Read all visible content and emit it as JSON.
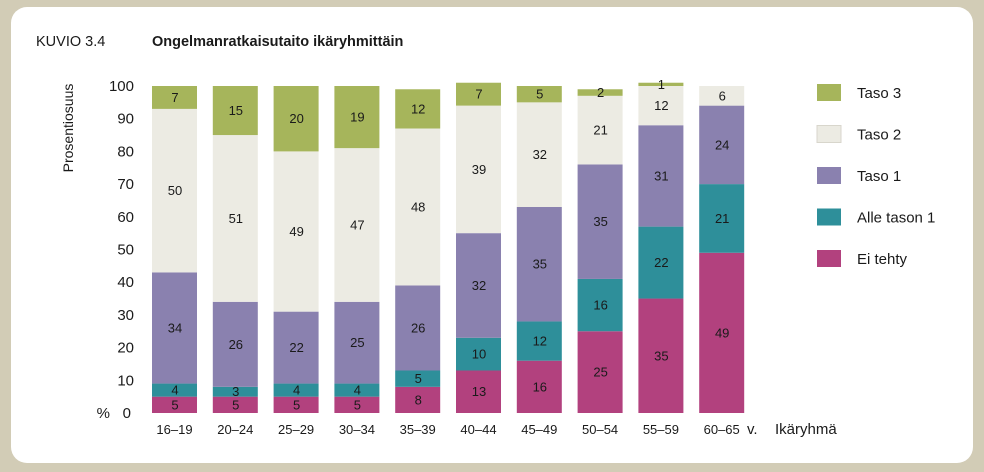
{
  "figure": {
    "number": "KUVIO 3.4",
    "title": "Ongelmanratkaisutaito ikäryhmittäin"
  },
  "chart_data": {
    "type": "bar",
    "stacked": true,
    "ylabel": "Prosentiosuus",
    "y_unit_label": "%",
    "xlabel": "Ikäryhmä",
    "x_suffix": "v.",
    "ylim": [
      0,
      100
    ],
    "yticks": [
      0,
      10,
      20,
      30,
      40,
      50,
      60,
      70,
      80,
      90,
      100
    ],
    "grid": false,
    "legend_position": "right",
    "categories": [
      "16–19",
      "20–24",
      "25–29",
      "30–34",
      "35–39",
      "40–44",
      "45–49",
      "50–54",
      "55–59",
      "60–65"
    ],
    "series": [
      {
        "name": "Ei tehty",
        "color": "#b2417e",
        "values": [
          5,
          5,
          5,
          5,
          8,
          13,
          16,
          25,
          35,
          49
        ]
      },
      {
        "name": "Alle tason 1",
        "color": "#2e8f9a",
        "values": [
          4,
          3,
          4,
          4,
          5,
          10,
          12,
          16,
          22,
          21
        ]
      },
      {
        "name": "Taso 1",
        "color": "#8a81af",
        "values": [
          34,
          26,
          22,
          25,
          26,
          32,
          35,
          35,
          31,
          24
        ]
      },
      {
        "name": "Taso 2",
        "color": "#ecebe3",
        "values": [
          50,
          51,
          49,
          47,
          48,
          39,
          32,
          21,
          12,
          6
        ]
      },
      {
        "name": "Taso 3",
        "color": "#a6b55b",
        "values": [
          7,
          15,
          20,
          19,
          12,
          7,
          5,
          2,
          1,
          0
        ]
      }
    ],
    "legend_order": [
      "Taso 3",
      "Taso 2",
      "Taso 1",
      "Alle tason 1",
      "Ei tehty"
    ]
  }
}
